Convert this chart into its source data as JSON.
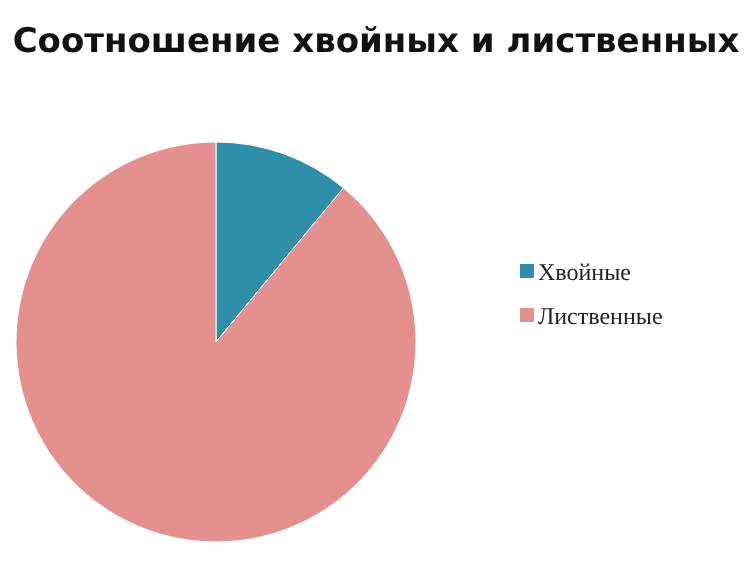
{
  "chart_data": {
    "type": "pie",
    "title": "Соотношение хвойных и лиственных",
    "categories": [
      "Хвойные",
      "Лиственные"
    ],
    "values": [
      11,
      89
    ],
    "colors": [
      "#2f8fa8",
      "#e49090"
    ],
    "legend": "right"
  }
}
